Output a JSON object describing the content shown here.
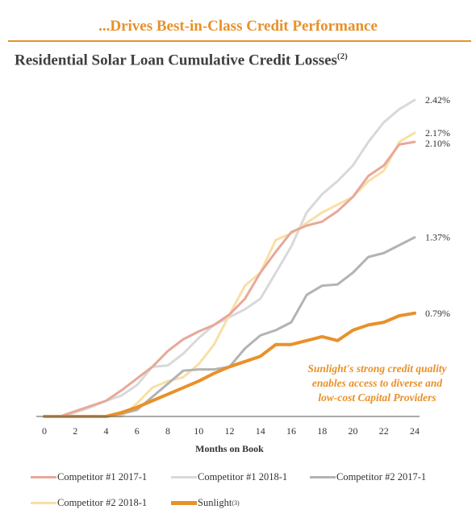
{
  "header": {
    "headline": "...Drives Best-in-Class Credit Performance",
    "subtitle": "Residential Solar Loan Cumulative Credit Losses",
    "subtitle_note": "(2)"
  },
  "callout_lines": [
    "Sunlight's strong credit quality",
    "enables access to diverse and",
    "low-cost Capital Providers"
  ],
  "colors": {
    "accent": "#E8912A",
    "competitor1_2017": "#E8A89A",
    "competitor1_2018": "#D9D9D9",
    "competitor2_2017": "#B3B3B3",
    "competitor2_2018": "#F9DFA6",
    "sunlight": "#E8912A"
  },
  "chart_data": {
    "type": "line",
    "xlabel": "Months on Book",
    "ylabel": "",
    "x_ticks": [
      "0",
      "2",
      "4",
      "6",
      "8",
      "10",
      "12",
      "14",
      "16",
      "18",
      "20",
      "22",
      "24"
    ],
    "xlim": [
      0,
      24
    ],
    "ylim": [
      0,
      2.6
    ],
    "grid": false,
    "legend_position": "bottom",
    "x": [
      0,
      1,
      2,
      3,
      4,
      5,
      6,
      7,
      8,
      9,
      10,
      11,
      12,
      13,
      14,
      15,
      16,
      17,
      18,
      19,
      20,
      21,
      22,
      23,
      24
    ],
    "series": [
      {
        "name": "Competitor #1 2018-1",
        "color_key": "competitor1_2018",
        "end_label": "2.42%",
        "values": [
          0,
          0,
          0.03,
          0.07,
          0.12,
          0.16,
          0.24,
          0.38,
          0.39,
          0.48,
          0.6,
          0.7,
          0.76,
          0.82,
          0.9,
          1.1,
          1.3,
          1.56,
          1.7,
          1.8,
          1.92,
          2.1,
          2.25,
          2.35,
          2.42
        ]
      },
      {
        "name": "Competitor #2 2018-1",
        "color_key": "competitor2_2018",
        "end_label": "2.17%",
        "values": [
          0,
          0,
          0,
          0,
          0,
          0,
          0.1,
          0.22,
          0.27,
          0.3,
          0.4,
          0.55,
          0.78,
          1.0,
          1.1,
          1.35,
          1.4,
          1.48,
          1.56,
          1.62,
          1.68,
          1.8,
          1.88,
          2.1,
          2.17
        ]
      },
      {
        "name": "Competitor #1 2017-1",
        "color_key": "competitor1_2017",
        "end_label": "2.10%",
        "values": [
          0,
          0,
          0.04,
          0.08,
          0.12,
          0.2,
          0.29,
          0.38,
          0.5,
          0.59,
          0.65,
          0.7,
          0.78,
          0.9,
          1.1,
          1.26,
          1.41,
          1.46,
          1.49,
          1.57,
          1.68,
          1.84,
          1.92,
          2.08,
          2.1
        ]
      },
      {
        "name": "Competitor #2 2017-1",
        "color_key": "competitor2_2017",
        "end_label": "1.37%",
        "values": [
          0,
          0,
          0,
          0,
          0,
          0.02,
          0.05,
          0.15,
          0.25,
          0.35,
          0.36,
          0.36,
          0.38,
          0.52,
          0.62,
          0.66,
          0.72,
          0.93,
          1.0,
          1.01,
          1.1,
          1.22,
          1.25,
          1.31,
          1.37
        ]
      },
      {
        "name": "Sunlight",
        "name_note": "(3)",
        "color_key": "sunlight",
        "end_label": "0.79%",
        "values": [
          0,
          0,
          0,
          0,
          0,
          0.03,
          0.07,
          0.12,
          0.17,
          0.22,
          0.27,
          0.33,
          0.38,
          0.42,
          0.46,
          0.55,
          0.55,
          0.58,
          0.61,
          0.58,
          0.66,
          0.7,
          0.72,
          0.77,
          0.79
        ]
      }
    ],
    "legend_order": [
      "Competitor #1 2017-1",
      "Competitor #1 2018-1",
      "Competitor #2 2017-1",
      "Competitor #2 2018-1",
      "Sunlight"
    ]
  }
}
